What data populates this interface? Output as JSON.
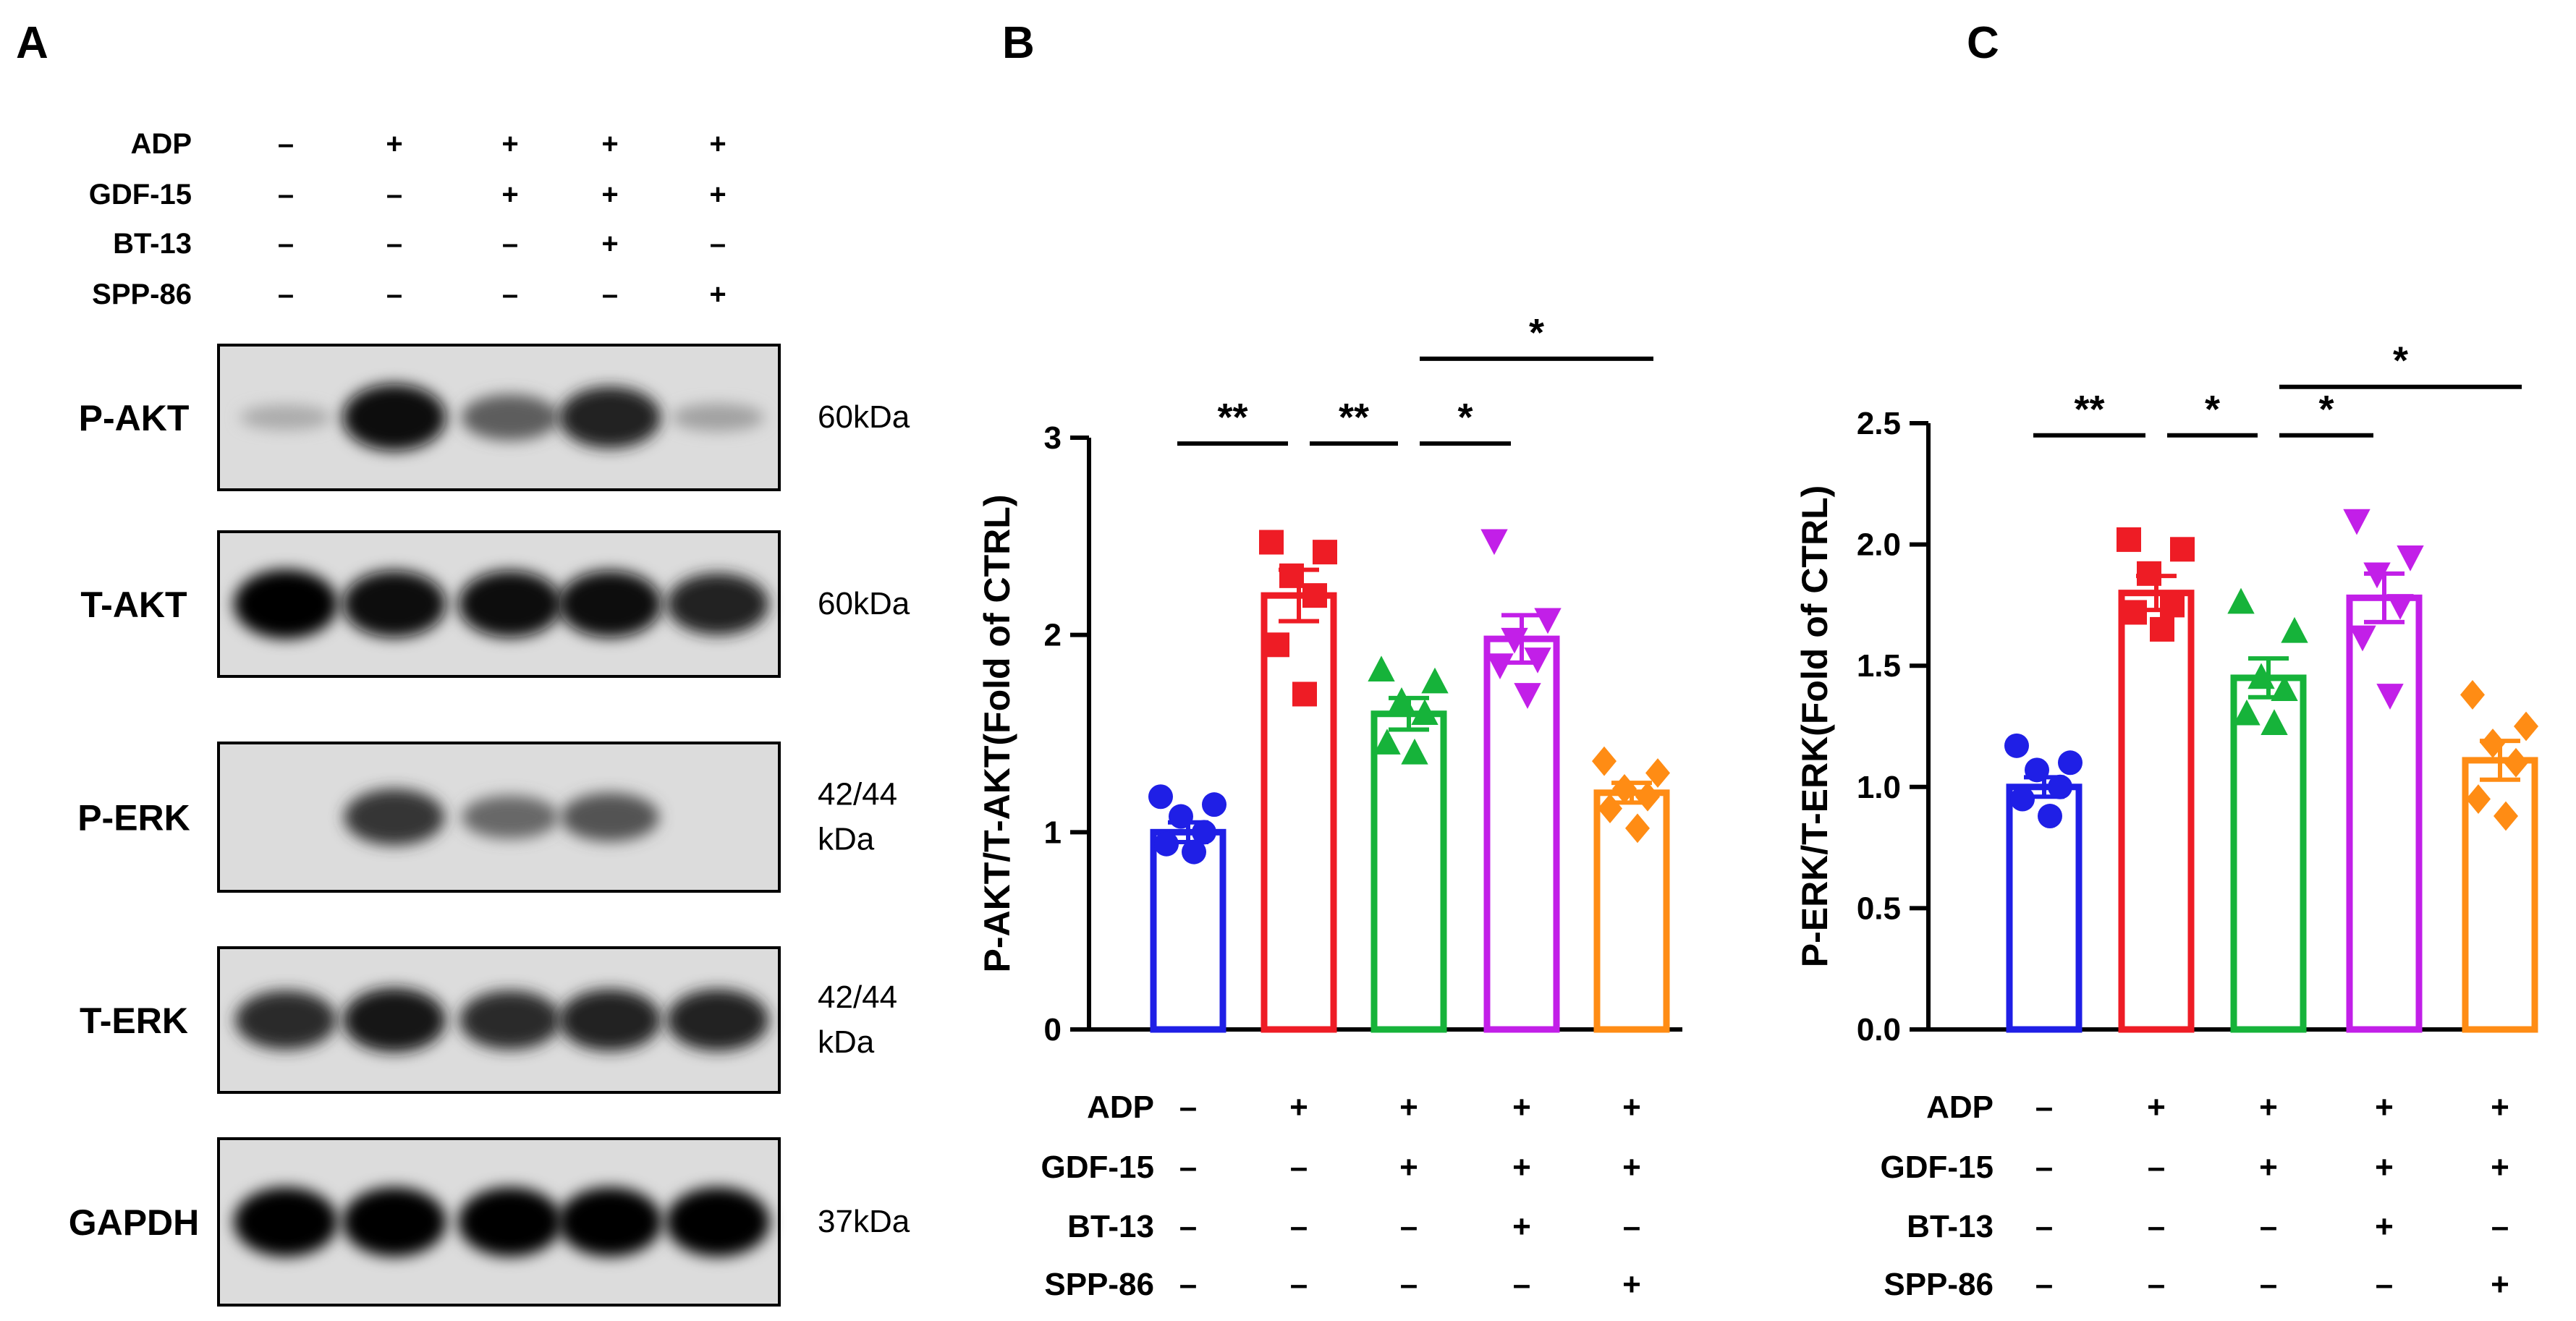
{
  "panels": {
    "a": "A",
    "b": "B",
    "c": "C"
  },
  "blot": {
    "treatments": [
      {
        "name": "ADP",
        "values": [
          "–",
          "+",
          "+",
          "+",
          "+"
        ]
      },
      {
        "name": "GDF-15",
        "values": [
          "–",
          "–",
          "+",
          "+",
          "+"
        ]
      },
      {
        "name": "BT-13",
        "values": [
          "–",
          "–",
          "–",
          "+",
          "–"
        ]
      },
      {
        "name": "SPP-86",
        "values": [
          "–",
          "–",
          "–",
          "–",
          "+"
        ]
      }
    ],
    "bands": [
      {
        "label": "P-AKT",
        "size": "60kDa",
        "intensity": [
          0.15,
          0.95,
          0.55,
          0.85,
          0.2
        ]
      },
      {
        "label": "T-AKT",
        "size": "60kDa",
        "intensity": [
          1.0,
          0.95,
          0.95,
          0.95,
          0.85
        ]
      },
      {
        "label": "P-ERK",
        "size": "42/44\nkDa",
        "intensity": [
          0.0,
          0.75,
          0.5,
          0.6,
          0.0
        ]
      },
      {
        "label": "T-ERK",
        "size": "42/44\nkDa",
        "intensity": [
          0.8,
          0.9,
          0.8,
          0.85,
          0.85
        ]
      },
      {
        "label": "GAPDH",
        "size": "37kDa",
        "intensity": [
          1.0,
          1.0,
          1.0,
          1.0,
          1.0
        ]
      }
    ]
  },
  "chart_data": [
    {
      "type": "bar",
      "panel": "B",
      "ylabel": "P-AKT/T-AKT(Fold of CTRL)",
      "ylim": [
        0,
        3
      ],
      "yticks": [
        0,
        1,
        2,
        3
      ],
      "ytick_labels": [
        "0",
        "1",
        "2",
        "3"
      ],
      "groups": [
        {
          "mean": 1.0,
          "sem": 0.05,
          "color": "#1f1fe6",
          "marker": "circle",
          "points": [
            1.18,
            1.14,
            1.08,
            1.0,
            0.94,
            0.9
          ]
        },
        {
          "mean": 2.2,
          "sem": 0.13,
          "color": "#ee1c25",
          "marker": "square",
          "points": [
            2.47,
            2.42,
            2.3,
            2.2,
            1.95,
            1.7
          ]
        },
        {
          "mean": 1.6,
          "sem": 0.08,
          "color": "#16b33a",
          "marker": "triangle",
          "points": [
            1.82,
            1.76,
            1.66,
            1.6,
            1.45,
            1.4
          ]
        },
        {
          "mean": 1.98,
          "sem": 0.12,
          "color": "#c21fe8",
          "marker": "triangle-down",
          "points": [
            2.48,
            2.08,
            1.98,
            1.88,
            1.85,
            1.7
          ]
        },
        {
          "mean": 1.2,
          "sem": 0.05,
          "color": "#ff8c14",
          "marker": "diamond",
          "points": [
            1.36,
            1.3,
            1.22,
            1.18,
            1.12,
            1.02
          ]
        }
      ],
      "significance": [
        {
          "from": 0,
          "to": 1,
          "label": "**",
          "y": 2.97
        },
        {
          "from": 1,
          "to": 2,
          "label": "**",
          "y": 2.97
        },
        {
          "from": 2,
          "to": 3,
          "label": "*",
          "y": 2.97
        },
        {
          "from": 2,
          "to": 4,
          "label": "*",
          "y": 3.4
        }
      ],
      "treatments": [
        {
          "name": "ADP",
          "values": [
            "–",
            "+",
            "+",
            "+",
            "+"
          ]
        },
        {
          "name": "GDF-15",
          "values": [
            "–",
            "–",
            "+",
            "+",
            "+"
          ]
        },
        {
          "name": "BT-13",
          "values": [
            "–",
            "–",
            "–",
            "+",
            "–"
          ]
        },
        {
          "name": "SPP-86",
          "values": [
            "–",
            "–",
            "–",
            "–",
            "+"
          ]
        }
      ]
    },
    {
      "type": "bar",
      "panel": "C",
      "ylabel": "P-ERK/T-ERK(Fold  of CTRL)",
      "ylim": [
        0,
        2.5
      ],
      "yticks": [
        0,
        0.5,
        1.0,
        1.5,
        2.0,
        2.5
      ],
      "ytick_labels": [
        "0.0",
        "0.5",
        "1.0",
        "1.5",
        "2.0",
        "2.5"
      ],
      "groups": [
        {
          "mean": 1.0,
          "sem": 0.04,
          "color": "#1f1fe6",
          "marker": "circle",
          "points": [
            1.17,
            1.1,
            1.07,
            1.0,
            0.95,
            0.88
          ]
        },
        {
          "mean": 1.8,
          "sem": 0.07,
          "color": "#ee1c25",
          "marker": "square",
          "points": [
            2.02,
            1.98,
            1.88,
            1.75,
            1.72,
            1.65
          ]
        },
        {
          "mean": 1.45,
          "sem": 0.08,
          "color": "#16b33a",
          "marker": "triangle",
          "points": [
            1.76,
            1.64,
            1.45,
            1.4,
            1.3,
            1.26
          ]
        },
        {
          "mean": 1.78,
          "sem": 0.1,
          "color": "#c21fe8",
          "marker": "triangle-down",
          "points": [
            2.1,
            1.95,
            1.88,
            1.75,
            1.62,
            1.38
          ]
        },
        {
          "mean": 1.11,
          "sem": 0.08,
          "color": "#ff8c14",
          "marker": "diamond",
          "points": [
            1.38,
            1.25,
            1.18,
            1.1,
            0.95,
            0.88
          ]
        }
      ],
      "significance": [
        {
          "from": 0,
          "to": 1,
          "label": "**",
          "y": 2.45
        },
        {
          "from": 1,
          "to": 2,
          "label": "*",
          "y": 2.45
        },
        {
          "from": 2,
          "to": 3,
          "label": "*",
          "y": 2.45
        },
        {
          "from": 2,
          "to": 4,
          "label": "*",
          "y": 2.65
        }
      ],
      "treatments": [
        {
          "name": "ADP",
          "values": [
            "–",
            "+",
            "+",
            "+",
            "+"
          ]
        },
        {
          "name": "GDF-15",
          "values": [
            "–",
            "–",
            "+",
            "+",
            "+"
          ]
        },
        {
          "name": "BT-13",
          "values": [
            "–",
            "–",
            "–",
            "+",
            "–"
          ]
        },
        {
          "name": "SPP-86",
          "values": [
            "–",
            "–",
            "–",
            "–",
            "+"
          ]
        }
      ]
    }
  ]
}
